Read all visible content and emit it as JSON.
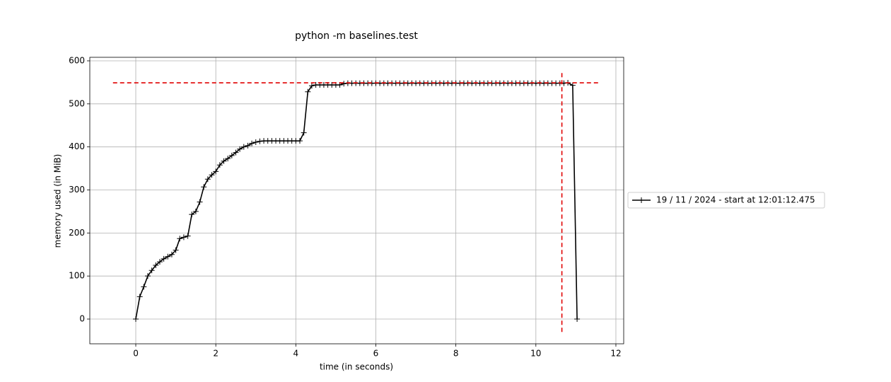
{
  "chart_data": {
    "type": "line",
    "title": "python -m baselines.test",
    "xlabel": "time (in seconds)",
    "ylabel": "memory used (in MiB)",
    "xlim": [
      -1.149,
      12.195
    ],
    "ylim": [
      -57.5,
      608.2
    ],
    "xticks": [
      0,
      2,
      4,
      6,
      8,
      10,
      12
    ],
    "yticks": [
      0,
      100,
      200,
      300,
      400,
      500,
      600
    ],
    "grid": true,
    "legend": "outside right",
    "series": [
      {
        "name": "19 / 11 / 2024 - start at 12:01:12.475",
        "color": "#000000",
        "x": [
          0,
          0.1,
          0.2,
          0.3,
          0.4,
          0.5,
          0.6,
          0.7,
          0.8,
          0.9,
          1,
          1.1,
          1.2,
          1.3,
          1.4,
          1.5,
          1.6,
          1.7,
          1.8,
          1.9,
          2,
          2.1,
          2.2,
          2.3,
          2.4,
          2.5,
          2.6,
          2.7,
          2.8,
          2.9,
          3,
          3.1,
          3.2,
          3.3,
          3.4,
          3.5,
          3.6,
          3.7,
          3.8,
          3.9,
          4,
          4.1,
          4.2,
          4.3,
          4.4,
          4.5,
          4.6,
          4.7,
          4.8,
          4.9,
          5,
          5.1,
          5.2,
          5.3,
          5.4,
          5.5,
          5.6,
          5.7,
          5.8,
          5.9,
          6,
          6.1,
          6.2,
          6.3,
          6.4,
          6.5,
          6.6,
          6.7,
          6.8,
          6.9,
          7,
          7.1,
          7.2,
          7.3,
          7.4,
          7.5,
          7.6,
          7.7,
          7.8,
          7.9,
          8,
          8.1,
          8.2,
          8.3,
          8.4,
          8.5,
          8.6,
          8.7,
          8.8,
          8.9,
          9,
          9.1,
          9.2,
          9.3,
          9.4,
          9.5,
          9.6,
          9.7,
          9.8,
          9.9,
          10,
          10.1,
          10.2,
          10.3,
          10.4,
          10.5,
          10.6,
          10.7,
          10.8,
          10.92,
          11.03
        ],
        "values": [
          0,
          52,
          75,
          100,
          113,
          125,
          133,
          140,
          145,
          150,
          160,
          187,
          190,
          193,
          243,
          250,
          272,
          307,
          325,
          335,
          343,
          358,
          367,
          373,
          380,
          387,
          395,
          400,
          403,
          408,
          411,
          413,
          414,
          414,
          414,
          414,
          414,
          414,
          414,
          414,
          414,
          414,
          433,
          528,
          542,
          544,
          544,
          544,
          544,
          544,
          544,
          544,
          547,
          548,
          548,
          548,
          548,
          548,
          548,
          548,
          548,
          548,
          548,
          548,
          548,
          548,
          548,
          548,
          548,
          548,
          548,
          548,
          548,
          548,
          548,
          548,
          548,
          548,
          548,
          548,
          548,
          548,
          548,
          548,
          548,
          548,
          548,
          548,
          548,
          548,
          548,
          548,
          548,
          548,
          548,
          548,
          548,
          548,
          548,
          548,
          548,
          548,
          548,
          548,
          548,
          548,
          548,
          548,
          549,
          543,
          0
        ]
      }
    ],
    "max_memory": {
      "color": "#e00000",
      "value": 549,
      "time": 10.65,
      "hspan": [
        -0.57,
        11.59
      ],
      "vspan": [
        -30,
        577
      ]
    }
  }
}
